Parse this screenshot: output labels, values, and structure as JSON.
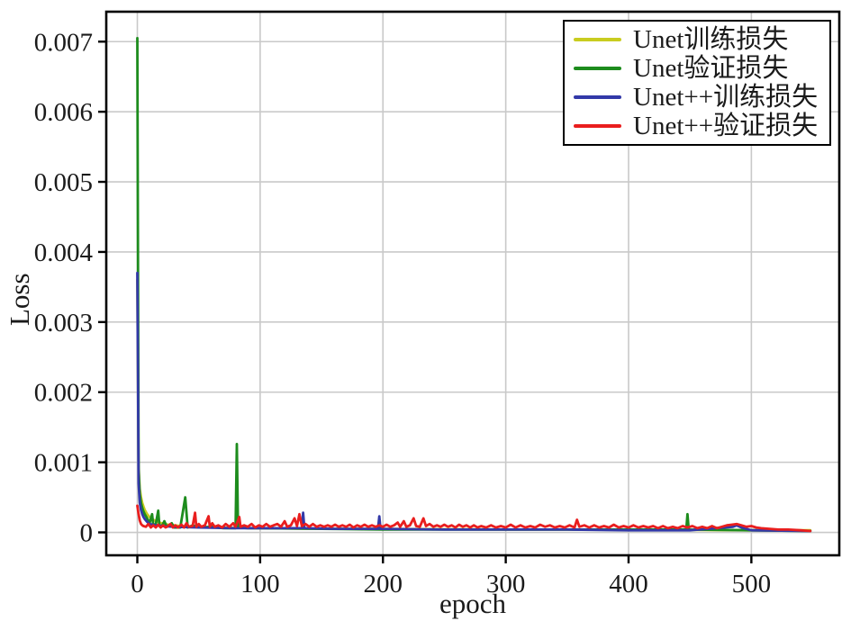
{
  "figure": {
    "background": "#ffffff",
    "axis_color": "#000000",
    "grid_color": "#c9c9c9",
    "text_color": "#1a1a1a"
  },
  "chart_data": {
    "type": "line",
    "title": "",
    "xlabel": "epoch",
    "ylabel": "Loss",
    "grid": true,
    "legend_position": "top-right",
    "xlim": [
      -25.3,
      571.6
    ],
    "ylim": [
      -0.000327,
      0.007427
    ],
    "xticks": [
      {
        "v": 0,
        "label": "0"
      },
      {
        "v": 100,
        "label": "100"
      },
      {
        "v": 200,
        "label": "200"
      },
      {
        "v": 300,
        "label": "300"
      },
      {
        "v": 400,
        "label": "400"
      },
      {
        "v": 500,
        "label": "500"
      }
    ],
    "yticks": [
      {
        "v": 0,
        "label": "0"
      },
      {
        "v": 0.001,
        "label": "0.001"
      },
      {
        "v": 0.002,
        "label": "0.002"
      },
      {
        "v": 0.003,
        "label": "0.003"
      },
      {
        "v": 0.004,
        "label": "0.004"
      },
      {
        "v": 0.005,
        "label": "0.005"
      },
      {
        "v": 0.006,
        "label": "0.006"
      },
      {
        "v": 0.007,
        "label": "0.007"
      }
    ],
    "series": [
      {
        "id": "unet-train",
        "name": "Unet训练损失",
        "color": "#c9cc20",
        "points": [
          [
            0,
            0.0036
          ],
          [
            1,
            0.00095
          ],
          [
            2,
            0.00062
          ],
          [
            3,
            0.0005
          ],
          [
            4,
            0.00042
          ],
          [
            5,
            0.00037
          ],
          [
            6,
            0.00032
          ],
          [
            8,
            0.00026
          ],
          [
            10,
            0.00022
          ],
          [
            12,
            0.00019
          ],
          [
            15,
            0.00016
          ],
          [
            20,
            0.00013
          ],
          [
            25,
            0.00011
          ],
          [
            30,
            0.0001
          ],
          [
            40,
            8e-05
          ],
          [
            60,
            7e-05
          ],
          [
            100,
            6e-05
          ],
          [
            150,
            5e-05
          ],
          [
            200,
            5e-05
          ],
          [
            300,
            4e-05
          ],
          [
            400,
            4e-05
          ],
          [
            500,
            3e-05
          ],
          [
            548,
            3e-05
          ]
        ]
      },
      {
        "id": "unet-val",
        "name": "Unet验证损失",
        "color": "#1d8c1d",
        "points": [
          [
            0,
            0.00705
          ],
          [
            1,
            0.0009
          ],
          [
            2,
            0.00055
          ],
          [
            3,
            0.00042
          ],
          [
            4,
            0.00035
          ],
          [
            5,
            0.0003
          ],
          [
            6,
            0.00026
          ],
          [
            8,
            0.0002
          ],
          [
            10,
            0.00013
          ],
          [
            12,
            0.00026
          ],
          [
            13,
            0.0001
          ],
          [
            15,
            0.00012
          ],
          [
            17,
            0.00031
          ],
          [
            18,
            0.0001
          ],
          [
            20,
            9e-05
          ],
          [
            22,
            0.00016
          ],
          [
            24,
            8e-05
          ],
          [
            28,
            0.00013
          ],
          [
            30,
            7e-05
          ],
          [
            35,
            7e-05
          ],
          [
            39,
            0.0005
          ],
          [
            41,
            7e-05
          ],
          [
            45,
            0.0001
          ],
          [
            50,
            7e-05
          ],
          [
            60,
            8e-05
          ],
          [
            70,
            6e-05
          ],
          [
            80,
            6e-05
          ],
          [
            81,
            0.00126
          ],
          [
            82,
            7e-05
          ],
          [
            90,
            6e-05
          ],
          [
            100,
            6e-05
          ],
          [
            150,
            5e-05
          ],
          [
            200,
            4e-05
          ],
          [
            250,
            4e-05
          ],
          [
            300,
            4e-05
          ],
          [
            350,
            4e-05
          ],
          [
            400,
            4e-05
          ],
          [
            447,
            4e-05
          ],
          [
            448,
            0.00026
          ],
          [
            449,
            4e-05
          ],
          [
            500,
            3e-05
          ],
          [
            548,
            2e-05
          ]
        ]
      },
      {
        "id": "unetpp-train",
        "name": "Unet++训练损失",
        "color": "#3239a8",
        "points": [
          [
            0,
            0.0037
          ],
          [
            1,
            0.0007
          ],
          [
            2,
            0.00042
          ],
          [
            3,
            0.00032
          ],
          [
            4,
            0.00026
          ],
          [
            5,
            0.00022
          ],
          [
            6,
            0.00019
          ],
          [
            8,
            0.00015
          ],
          [
            10,
            0.00012
          ],
          [
            15,
            0.0001
          ],
          [
            20,
            9e-05
          ],
          [
            30,
            8e-05
          ],
          [
            50,
            7e-05
          ],
          [
            80,
            6e-05
          ],
          [
            100,
            6e-05
          ],
          [
            134,
            6e-05
          ],
          [
            135,
            0.00028
          ],
          [
            136,
            6e-05
          ],
          [
            160,
            5e-05
          ],
          [
            196,
            5e-05
          ],
          [
            197,
            0.00023
          ],
          [
            198,
            5e-05
          ],
          [
            250,
            4e-05
          ],
          [
            300,
            4e-05
          ],
          [
            350,
            4e-05
          ],
          [
            400,
            3e-05
          ],
          [
            450,
            3e-05
          ],
          [
            485,
            8e-05
          ],
          [
            488,
            0.0001
          ],
          [
            492,
            7e-05
          ],
          [
            500,
            3e-05
          ],
          [
            548,
            2e-05
          ]
        ]
      },
      {
        "id": "unetpp-val",
        "name": "Unet++验证损失",
        "color": "#e91e1e",
        "points": [
          [
            0,
            0.00038
          ],
          [
            1,
            0.00026
          ],
          [
            2,
            0.00017
          ],
          [
            3,
            0.00012
          ],
          [
            4,
            0.0001
          ],
          [
            5,
            9e-05
          ],
          [
            7,
            8e-05
          ],
          [
            9,
            0.00012
          ],
          [
            11,
            7e-05
          ],
          [
            13,
            0.0001
          ],
          [
            15,
            7e-05
          ],
          [
            17,
            0.00011
          ],
          [
            19,
            7e-05
          ],
          [
            21,
            0.0001
          ],
          [
            23,
            7e-05
          ],
          [
            25,
            9e-05
          ],
          [
            27,
            0.00012
          ],
          [
            29,
            7e-05
          ],
          [
            31,
            0.0001
          ],
          [
            33,
            7e-05
          ],
          [
            36,
            0.00011
          ],
          [
            38,
            7e-05
          ],
          [
            40,
            0.00013
          ],
          [
            42,
            8e-05
          ],
          [
            45,
            9e-05
          ],
          [
            47,
            0.00028
          ],
          [
            48,
            8e-05
          ],
          [
            50,
            0.00012
          ],
          [
            52,
            8e-05
          ],
          [
            55,
            0.0001
          ],
          [
            58,
            0.00023
          ],
          [
            59,
            8e-05
          ],
          [
            61,
            0.00013
          ],
          [
            63,
            8e-05
          ],
          [
            66,
            0.0001
          ],
          [
            69,
            7e-05
          ],
          [
            72,
            0.00012
          ],
          [
            75,
            8e-05
          ],
          [
            78,
            0.00013
          ],
          [
            80,
            8e-05
          ],
          [
            83,
            0.00022
          ],
          [
            84,
            8e-05
          ],
          [
            87,
            0.0001
          ],
          [
            90,
            8e-05
          ],
          [
            93,
            0.00012
          ],
          [
            96,
            7e-05
          ],
          [
            99,
            0.0001
          ],
          [
            102,
            8e-05
          ],
          [
            105,
            0.00012
          ],
          [
            108,
            8e-05
          ],
          [
            111,
            0.0001
          ],
          [
            114,
            0.00012
          ],
          [
            117,
            8e-05
          ],
          [
            120,
            0.00016
          ],
          [
            122,
            8e-05
          ],
          [
            125,
            0.0001
          ],
          [
            128,
            0.0002
          ],
          [
            130,
            9e-05
          ],
          [
            132,
            0.00026
          ],
          [
            134,
            9e-05
          ],
          [
            137,
            0.00012
          ],
          [
            140,
            8e-05
          ],
          [
            143,
            0.00012
          ],
          [
            146,
            8e-05
          ],
          [
            149,
            0.0001
          ],
          [
            152,
            8e-05
          ],
          [
            155,
            0.0001
          ],
          [
            158,
            8e-05
          ],
          [
            161,
            0.00011
          ],
          [
            164,
            8e-05
          ],
          [
            167,
            0.0001
          ],
          [
            170,
            8e-05
          ],
          [
            173,
            0.00011
          ],
          [
            176,
            7e-05
          ],
          [
            179,
            0.0001
          ],
          [
            182,
            8e-05
          ],
          [
            185,
            0.00011
          ],
          [
            188,
            8e-05
          ],
          [
            191,
            0.0001
          ],
          [
            194,
            8e-05
          ],
          [
            197,
            0.0001
          ],
          [
            200,
            8e-05
          ],
          [
            203,
            0.00011
          ],
          [
            206,
            8e-05
          ],
          [
            209,
            0.0001
          ],
          [
            212,
            0.00014
          ],
          [
            214,
            8e-05
          ],
          [
            217,
            0.00016
          ],
          [
            219,
            8e-05
          ],
          [
            222,
            0.0001
          ],
          [
            225,
            0.0002
          ],
          [
            227,
            9e-05
          ],
          [
            230,
            8e-05
          ],
          [
            233,
            0.0002
          ],
          [
            235,
            9e-05
          ],
          [
            238,
            0.00012
          ],
          [
            241,
            8e-05
          ],
          [
            244,
            0.0001
          ],
          [
            247,
            8e-05
          ],
          [
            250,
            0.00011
          ],
          [
            253,
            8e-05
          ],
          [
            256,
            0.0001
          ],
          [
            259,
            7e-05
          ],
          [
            262,
            0.00011
          ],
          [
            265,
            8e-05
          ],
          [
            268,
            0.0001
          ],
          [
            271,
            7e-05
          ],
          [
            274,
            0.0001
          ],
          [
            277,
            7e-05
          ],
          [
            280,
            9e-05
          ],
          [
            284,
            7e-05
          ],
          [
            288,
            0.0001
          ],
          [
            292,
            7e-05
          ],
          [
            296,
            9e-05
          ],
          [
            300,
            7e-05
          ],
          [
            304,
            0.00011
          ],
          [
            308,
            7e-05
          ],
          [
            312,
            0.0001
          ],
          [
            316,
            7e-05
          ],
          [
            320,
            9e-05
          ],
          [
            324,
            7e-05
          ],
          [
            328,
            0.00011
          ],
          [
            332,
            8e-05
          ],
          [
            336,
            0.0001
          ],
          [
            340,
            7e-05
          ],
          [
            344,
            9e-05
          ],
          [
            348,
            7e-05
          ],
          [
            352,
            0.0001
          ],
          [
            356,
            7e-05
          ],
          [
            358,
            0.00018
          ],
          [
            360,
            8e-05
          ],
          [
            364,
            0.0001
          ],
          [
            368,
            7e-05
          ],
          [
            372,
            0.0001
          ],
          [
            376,
            7e-05
          ],
          [
            380,
            9e-05
          ],
          [
            384,
            7e-05
          ],
          [
            388,
            0.00011
          ],
          [
            392,
            7e-05
          ],
          [
            396,
            9e-05
          ],
          [
            400,
            7e-05
          ],
          [
            404,
            0.0001
          ],
          [
            408,
            7e-05
          ],
          [
            412,
            9e-05
          ],
          [
            416,
            7e-05
          ],
          [
            420,
            9e-05
          ],
          [
            424,
            6e-05
          ],
          [
            428,
            9e-05
          ],
          [
            432,
            6e-05
          ],
          [
            436,
            8e-05
          ],
          [
            440,
            6e-05
          ],
          [
            444,
            9e-05
          ],
          [
            448,
            7e-05
          ],
          [
            452,
            9e-05
          ],
          [
            456,
            6e-05
          ],
          [
            460,
            8e-05
          ],
          [
            464,
            6e-05
          ],
          [
            468,
            9e-05
          ],
          [
            472,
            6e-05
          ],
          [
            476,
            8e-05
          ],
          [
            480,
            0.0001
          ],
          [
            484,
            0.00011
          ],
          [
            488,
            0.00012
          ],
          [
            492,
            0.0001
          ],
          [
            496,
            8e-05
          ],
          [
            500,
            9e-05
          ],
          [
            504,
            7e-05
          ],
          [
            508,
            6e-05
          ],
          [
            515,
            5e-05
          ],
          [
            522,
            4e-05
          ],
          [
            530,
            4e-05
          ],
          [
            540,
            3e-05
          ],
          [
            548,
            2e-05
          ]
        ]
      }
    ]
  }
}
